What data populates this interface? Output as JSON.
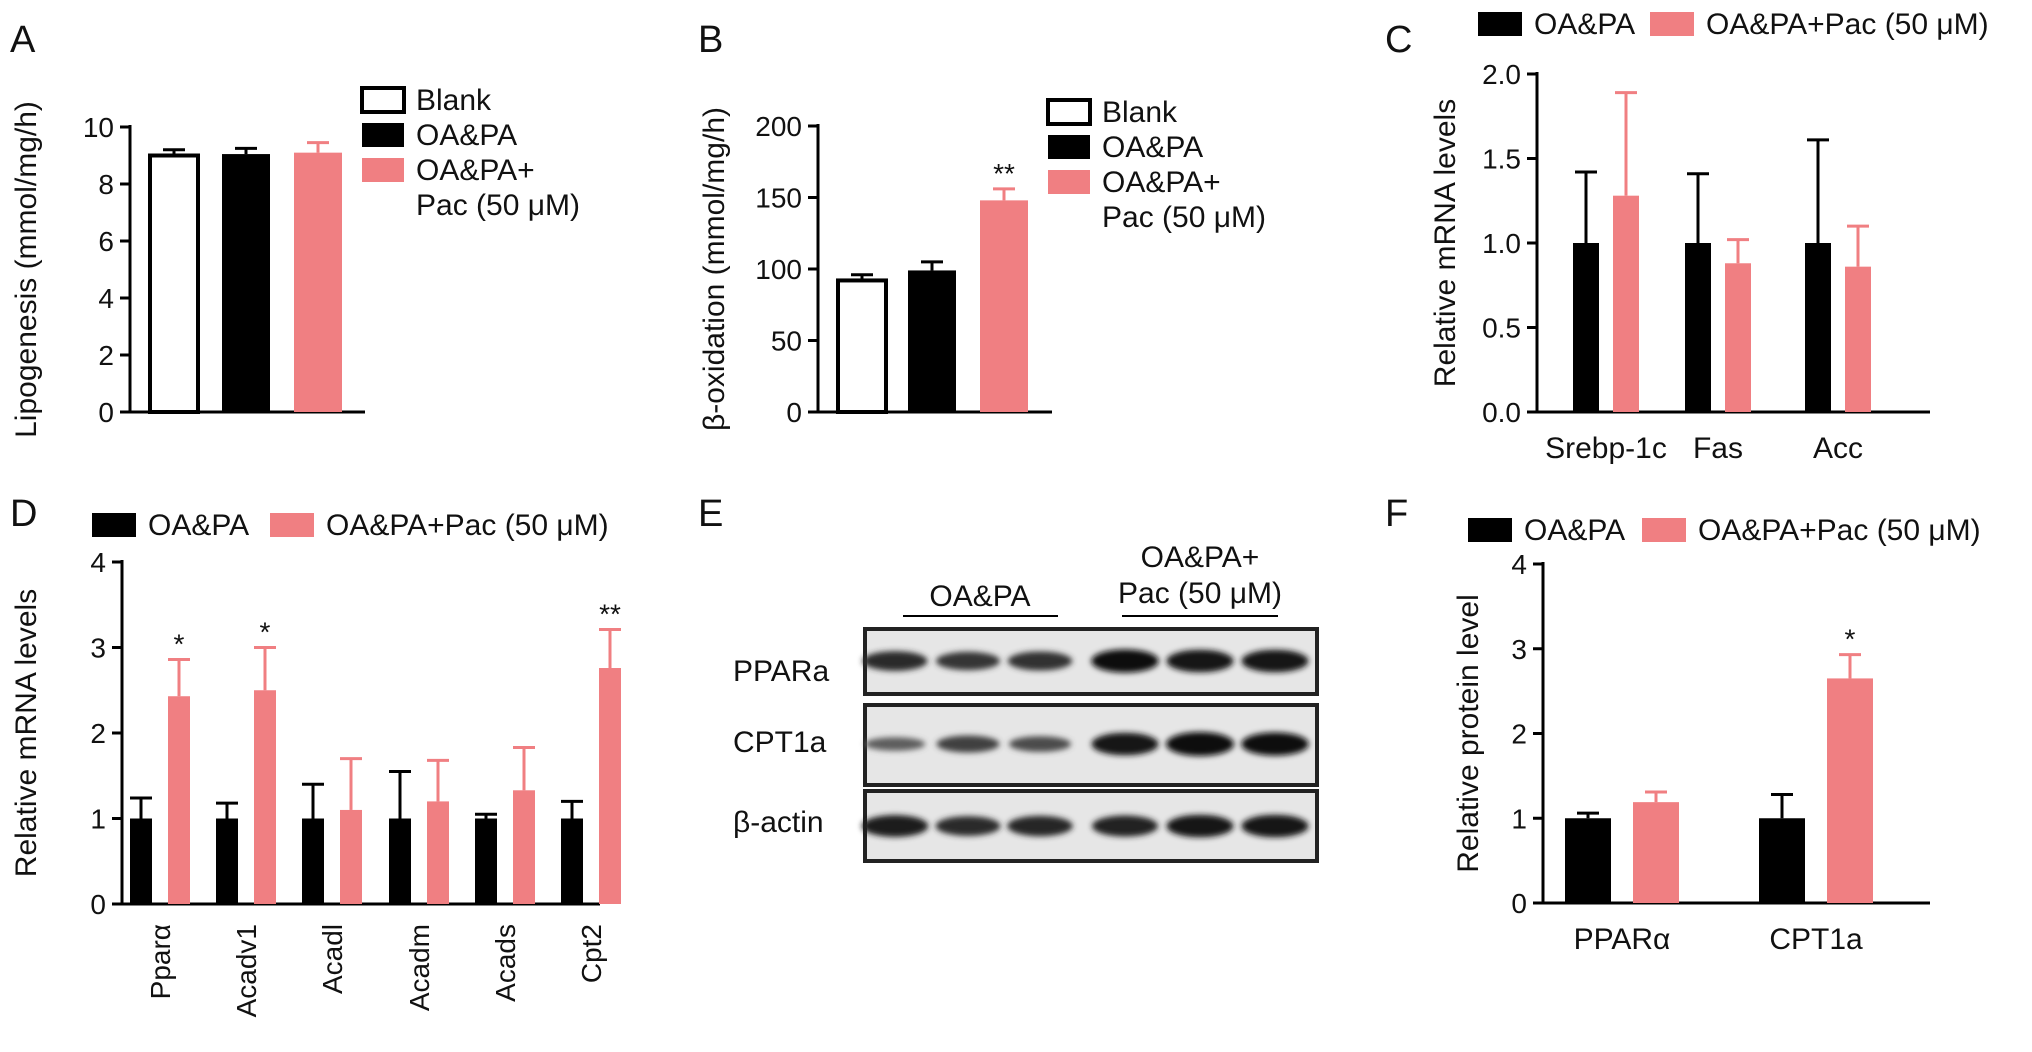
{
  "colors": {
    "black_series": "#000000",
    "pink_series": "#f07f82",
    "blank_fill": "#ffffff",
    "axis": "#000000"
  },
  "panel_labels": [
    "A",
    "B",
    "C",
    "D",
    "E",
    "F"
  ],
  "chart_data": [
    {
      "panel": "A",
      "type": "bar",
      "ylabel": "Lipogenesis (mmol/mg/h)",
      "ylim": [
        0,
        10
      ],
      "yticks": [
        "0",
        "2",
        "4",
        "6",
        "8",
        "10"
      ],
      "legend": [
        "Blank",
        "OA&PA",
        "OA&PA+",
        "Pac (50 μM)"
      ],
      "bars": [
        {
          "series": "Blank",
          "value": 9.0,
          "err": 0.2
        },
        {
          "series": "OA&PA",
          "value": 9.05,
          "err": 0.2
        },
        {
          "series": "OA&PA+Pac (50 μM)",
          "value": 9.1,
          "err": 0.35
        }
      ]
    },
    {
      "panel": "B",
      "type": "bar",
      "ylabel": "β-oxidation (mmol/mg/h)",
      "ylim": [
        0,
        200
      ],
      "yticks": [
        "0",
        "50",
        "100",
        "150",
        "200"
      ],
      "legend": [
        "Blank",
        "OA&PA",
        "OA&PA+",
        "Pac (50 μM)"
      ],
      "bars": [
        {
          "series": "Blank",
          "value": 92,
          "err": 4
        },
        {
          "series": "OA&PA",
          "value": 99,
          "err": 6
        },
        {
          "series": "OA&PA+Pac (50 μM)",
          "value": 148,
          "err": 8,
          "sig": "**"
        }
      ]
    },
    {
      "panel": "C",
      "type": "bar",
      "ylabel": "Relative mRNA levels",
      "ylim": [
        0,
        2.0
      ],
      "yticks": [
        "0.0",
        "0.5",
        "1.0",
        "1.5",
        "2.0"
      ],
      "legend": [
        "OA&PA",
        "OA&PA+Pac (50 μM)"
      ],
      "categories": [
        "Srebp-1c",
        "Fas",
        "Acc"
      ],
      "series": [
        {
          "name": "OA&PA",
          "values": [
            1.0,
            1.0,
            1.0
          ],
          "errors": [
            0.42,
            0.41,
            0.61
          ]
        },
        {
          "name": "OA&PA+Pac (50 μM)",
          "values": [
            1.28,
            0.88,
            0.86
          ],
          "errors": [
            0.61,
            0.14,
            0.24
          ]
        }
      ]
    },
    {
      "panel": "D",
      "type": "bar",
      "ylabel": "Relative mRNA levels",
      "ylim": [
        0,
        4
      ],
      "yticks": [
        "0",
        "1",
        "2",
        "3",
        "4"
      ],
      "legend": [
        "OA&PA",
        "OA&PA+Pac (50 μM)"
      ],
      "categories": [
        "Pparα",
        "Acadv1",
        "Acadl",
        "Acadm",
        "Acads",
        "Cpt2"
      ],
      "series": [
        {
          "name": "OA&PA",
          "values": [
            1.0,
            1.0,
            1.0,
            1.0,
            1.0,
            1.0
          ],
          "errors": [
            0.24,
            0.18,
            0.4,
            0.55,
            0.05,
            0.2
          ]
        },
        {
          "name": "OA&PA+Pac (50 μM)",
          "values": [
            2.43,
            2.5,
            1.1,
            1.2,
            1.33,
            2.76
          ],
          "errors": [
            0.43,
            0.5,
            0.6,
            0.48,
            0.5,
            0.45
          ]
        }
      ],
      "sig": [
        "*",
        "*",
        "",
        "",
        "",
        "**"
      ]
    },
    {
      "panel": "E",
      "type": "table",
      "group_labels": [
        "OA&PA",
        "OA&PA+",
        "Pac (50 μM)"
      ],
      "row_labels": [
        "PPARa",
        "CPT1a",
        "β-actin"
      ],
      "lanes_per_group": 3,
      "band_intensity": [
        [
          0.7,
          0.6,
          0.65,
          0.95,
          0.9,
          0.9
        ],
        [
          0.25,
          0.5,
          0.4,
          0.9,
          1.0,
          0.95
        ],
        [
          0.85,
          0.7,
          0.75,
          0.8,
          0.9,
          0.9
        ]
      ]
    },
    {
      "panel": "F",
      "type": "bar",
      "ylabel": "Relative protein level",
      "ylim": [
        0,
        4
      ],
      "yticks": [
        "0",
        "1",
        "2",
        "3",
        "4"
      ],
      "legend": [
        "OA&PA",
        "OA&PA+Pac (50 μM)"
      ],
      "categories": [
        "PPARα",
        "CPT1a"
      ],
      "series": [
        {
          "name": "OA&PA",
          "values": [
            1.0,
            1.0
          ],
          "errors": [
            0.06,
            0.28
          ]
        },
        {
          "name": "OA&PA+Pac (50 μM)",
          "values": [
            1.19,
            2.65
          ],
          "errors": [
            0.12,
            0.28
          ]
        }
      ],
      "sig": [
        "",
        "*"
      ]
    }
  ]
}
